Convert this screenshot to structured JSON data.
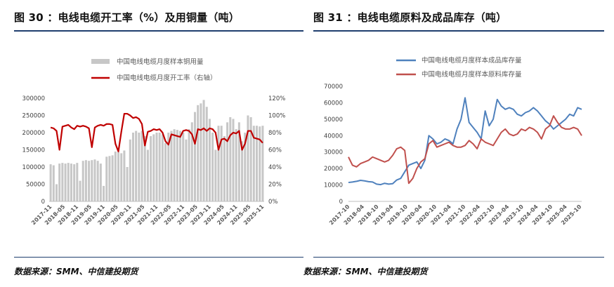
{
  "report": {
    "left_title": "图 30 ：电线电缆开工率（%）及用铜量（吨）",
    "right_title": "图 31 ：电线电缆原料及成品库存（吨）",
    "left_source": "数据来源：SMM、中信建投期货",
    "right_source": "数据来源：SMM、中信建投期货"
  },
  "colors": {
    "rule": "#1f3e6e",
    "bar": "#c7c7c7",
    "rate_line": "#c00000",
    "finished_line": "#4f81bd",
    "raw_line": "#c0504d"
  },
  "chart_data": [
    {
      "type": "bar",
      "title": "",
      "legend": {
        "placement": "top",
        "entries": [
          "中国电线电缆月度样本铜用量",
          "中国电线电缆月度开工率（右轴）"
        ]
      },
      "y_left": {
        "ylim": [
          0,
          300000
        ],
        "ticks": [
          "0",
          "50000",
          "100000",
          "150000",
          "200000",
          "250000",
          "300000"
        ]
      },
      "y_right": {
        "ylim": [
          0,
          1.2
        ],
        "ticks": [
          "0%",
          "20%",
          "40%",
          "60%",
          "80%",
          "100%",
          "120%"
        ]
      },
      "x_ticks": [
        "2017-11",
        "2018-05",
        "2018-11",
        "2019-05",
        "2019-11",
        "2020-05",
        "2020-11",
        "2021-05",
        "2021-11",
        "2022-05",
        "2022-11",
        "2023-05",
        "2023-11",
        "2024-05",
        "2024-11",
        "2025-05",
        "2025-11"
      ],
      "grid": false,
      "series": [
        {
          "name": "中国电线电缆月度样本铜用量",
          "kind": "bar",
          "values": [
            108000,
            105000,
            50000,
            110000,
            112000,
            110000,
            112000,
            110000,
            108000,
            112000,
            60000,
            118000,
            120000,
            118000,
            120000,
            122000,
            118000,
            110000,
            45000,
            130000,
            132000,
            134000,
            145000,
            143000,
            140000,
            148000,
            100000,
            180000,
            200000,
            205000,
            200000,
            205000,
            190000,
            150000,
            190000,
            195000,
            200000,
            200000,
            195000,
            170000,
            200000,
            205000,
            210000,
            208000,
            205000,
            200000,
            180000,
            210000,
            230000,
            260000,
            280000,
            285000,
            295000,
            275000,
            240000,
            200000,
            150000,
            220000,
            220000,
            190000,
            230000,
            245000,
            240000,
            210000,
            230000,
            175000,
            200000,
            250000,
            245000,
            220000,
            220000,
            218000,
            220000
          ]
        },
        {
          "name": "中国电线电缆月度开工率（右轴）",
          "kind": "line",
          "values": [
            0.86,
            0.85,
            0.82,
            0.6,
            0.87,
            0.88,
            0.89,
            0.86,
            0.84,
            0.88,
            0.87,
            0.88,
            0.87,
            0.85,
            0.63,
            0.86,
            0.88,
            0.89,
            0.88,
            0.9,
            0.9,
            0.89,
            0.67,
            0.58,
            0.81,
            1.02,
            1.02,
            1.0,
            0.97,
            0.98,
            0.96,
            0.9,
            0.65,
            0.81,
            0.82,
            0.84,
            0.83,
            0.84,
            0.8,
            0.7,
            0.66,
            0.78,
            0.77,
            0.76,
            0.75,
            0.82,
            0.83,
            0.82,
            0.78,
            0.67,
            0.84,
            0.83,
            0.85,
            0.82,
            0.85,
            0.84,
            0.8,
            0.6,
            0.72,
            0.73,
            0.7,
            0.77,
            0.8,
            0.79,
            0.82,
            0.6,
            0.67,
            0.82,
            0.82,
            0.74,
            0.73,
            0.72,
            0.68
          ]
        }
      ]
    },
    {
      "type": "line",
      "title": "",
      "legend": {
        "placement": "top",
        "entries": [
          "中国电线电缆月度样本成品库存量",
          "中国电线电缆月度样本原料库存量"
        ]
      },
      "ylim": [
        0,
        70000
      ],
      "y_ticks": [
        "0",
        "10000",
        "20000",
        "30000",
        "40000",
        "50000",
        "60000",
        "70000"
      ],
      "x_ticks": [
        "2017-10",
        "2018-04",
        "2018-10",
        "2019-04",
        "2019-10",
        "2020-04",
        "2020-10",
        "2021-04",
        "2021-10",
        "2022-04",
        "2022-10",
        "2023-04",
        "2023-10",
        "2024-04",
        "2024-10",
        "2025-04",
        "2025-10"
      ],
      "grid": false,
      "series": [
        {
          "name": "中国电线电缆月度样本成品库存量",
          "values": [
            11500,
            11800,
            12200,
            12800,
            12500,
            12000,
            11800,
            10500,
            10200,
            11000,
            10500,
            10800,
            13000,
            14000,
            18000,
            22000,
            23000,
            24000,
            20000,
            25000,
            40000,
            38000,
            35000,
            36000,
            38000,
            37000,
            35000,
            44000,
            50000,
            63000,
            48000,
            45000,
            42000,
            38000,
            55000,
            46000,
            50000,
            62000,
            58000,
            56000,
            57000,
            56000,
            53000,
            52000,
            54000,
            55000,
            57000,
            55000,
            52000,
            49000,
            47000,
            44000,
            46000,
            48000,
            50000,
            53000,
            52000,
            57000,
            56000
          ]
        },
        {
          "name": "中国电线电缆月度样本原料库存量",
          "values": [
            27000,
            22000,
            21000,
            23000,
            24000,
            25000,
            27000,
            26000,
            25000,
            24000,
            25000,
            28000,
            32000,
            33000,
            31000,
            11000,
            14000,
            20000,
            24000,
            26000,
            35000,
            37000,
            33000,
            34000,
            35000,
            36000,
            34000,
            33000,
            33000,
            34000,
            37000,
            35000,
            32000,
            38000,
            36000,
            35000,
            34000,
            38000,
            42000,
            44000,
            41000,
            40000,
            41000,
            44000,
            43000,
            45000,
            44000,
            42000,
            38000,
            44000,
            46000,
            52000,
            48000,
            45000,
            44000,
            44000,
            45000,
            44000,
            40000
          ]
        }
      ]
    }
  ]
}
